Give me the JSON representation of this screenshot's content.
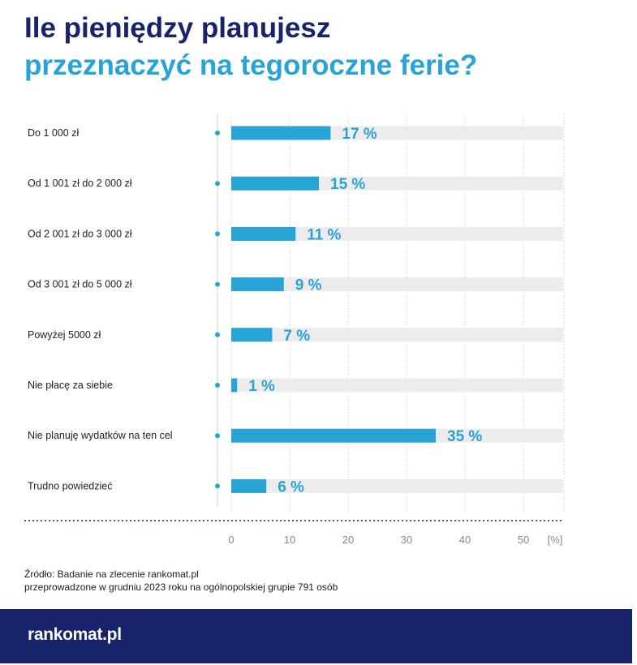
{
  "title": {
    "line1": "Ile pieniędzy planujesz",
    "line2": "przeznaczyć na tegoroczne ferie?"
  },
  "chart_data": {
    "type": "bar",
    "orientation": "horizontal",
    "title": "Ile pieniędzy planujesz przeznaczyć na tegoroczne ferie?",
    "categories": [
      "Do 1 000 zł",
      "Od 1 001 zł do 2 000 zł",
      "Od 2 001 zł do 3 000 zł",
      "Od 3 001 zł do 5 000 zł",
      "Powyżej 5000 zł",
      "Nie płacę za siebie",
      "Nie planuję wydatków na ten cel",
      "Trudno powiedzieć"
    ],
    "values": [
      17,
      15,
      11,
      9,
      7,
      1,
      35,
      6
    ],
    "value_labels": [
      "17 %",
      "15 %",
      "11 %",
      "9 %",
      "7 %",
      "1 %",
      "35 %",
      "6 %"
    ],
    "xlim": [
      0,
      57
    ],
    "xticks": [
      "0",
      "10",
      "20",
      "30",
      "40",
      "50"
    ],
    "xunit": "[%]",
    "grid": true,
    "colors": {
      "bar": "#27a3d6",
      "track": "#ececec",
      "grid": "#dcdcdc"
    }
  },
  "source": {
    "line1": "Źródło: Badanie na zlecenie rankomat.pl",
    "line2": "przeprowadzone w grudniu 2023 roku na ogólnopolskiej grupie 791 osób"
  },
  "footer": {
    "logo": "rankomat.pl"
  }
}
